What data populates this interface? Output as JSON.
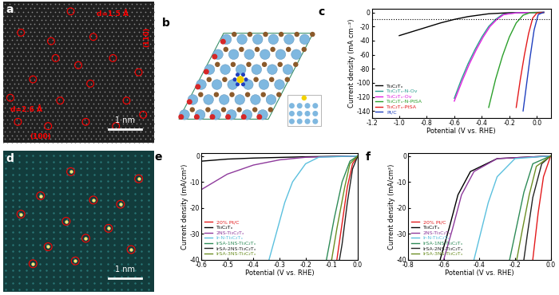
{
  "figure": {
    "a": {
      "label": "a",
      "annotations": [
        "d=1.5 Å",
        "(110)",
        "d=2.6 Å",
        "(100)"
      ],
      "scale_bar": "1 nm"
    },
    "b": {
      "label": "b"
    },
    "d": {
      "label": "d",
      "scale_bar": "1 nm"
    }
  },
  "chart_data": [
    {
      "type": "line",
      "title": "c",
      "xlabel": "Potential (V vs. RHE)",
      "ylabel": "Current density (mA cm⁻²)",
      "xlim": [
        -1.2,
        0.1
      ],
      "xticks": [
        -1.2,
        -1.0,
        -0.8,
        -0.6,
        -0.4,
        -0.2,
        0.0
      ],
      "ylim": [
        -150,
        5
      ],
      "yticks": [
        -140,
        -120,
        -100,
        -80,
        -60,
        -40,
        -20,
        0
      ],
      "reference_line": -10,
      "legend": "lower left",
      "series": [
        {
          "name": "Ti₃C₂Tₓ",
          "color": "#000000",
          "x": [
            0.05,
            -0.2,
            -0.35,
            -0.5,
            -0.6,
            -0.7,
            -0.8,
            -0.9,
            -1.0
          ],
          "values": [
            0,
            -0.5,
            -2,
            -6,
            -10,
            -15,
            -21,
            -27,
            -33
          ]
        },
        {
          "name": "Ti₃C₂Tₓ-N-Ov",
          "color": "#2a9d8f",
          "x": [
            0.05,
            -0.15,
            -0.25,
            -0.3,
            -0.35,
            -0.4,
            -0.45,
            -0.5,
            -0.55,
            -0.6
          ],
          "values": [
            0,
            -0.5,
            -3,
            -10,
            -20,
            -35,
            -53,
            -73,
            -96,
            -122
          ]
        },
        {
          "name": "Ti₃C₂Tₓ-Ov",
          "color": "#e020e0",
          "x": [
            0.05,
            -0.14,
            -0.24,
            -0.29,
            -0.34,
            -0.39,
            -0.44,
            -0.49,
            -0.54,
            -0.6
          ],
          "values": [
            0,
            -0.5,
            -3,
            -10,
            -20,
            -35,
            -53,
            -73,
            -96,
            -126
          ]
        },
        {
          "name": "Ti₃C₂Tₓ-N-PtSA",
          "color": "#2ca02c",
          "x": [
            0.05,
            -0.05,
            -0.1,
            -0.15,
            -0.2,
            -0.25,
            -0.3,
            -0.35
          ],
          "values": [
            0,
            -0.5,
            -4,
            -15,
            -35,
            -62,
            -95,
            -135
          ]
        },
        {
          "name": "Ti₃C₂Tₓ-PtSA",
          "color": "#e31a1c",
          "x": [
            0.05,
            0.0,
            -0.03,
            -0.06,
            -0.09,
            -0.12,
            -0.15
          ],
          "values": [
            0,
            -1,
            -8,
            -30,
            -60,
            -95,
            -135
          ]
        },
        {
          "name": "Pt/C",
          "color": "#1f3fbf",
          "x": [
            0.05,
            0.01,
            -0.02,
            -0.05,
            -0.08,
            -0.1
          ],
          "values": [
            0,
            -3,
            -25,
            -65,
            -110,
            -140
          ]
        }
      ]
    },
    {
      "type": "line",
      "title": "e",
      "xlabel": "Potential (V vs. RHE)",
      "ylabel": "Current density (mA/cm²)",
      "xlim": [
        -0.6,
        0.0
      ],
      "xticks": [
        -0.6,
        -0.5,
        -0.4,
        -0.3,
        -0.2,
        -0.1,
        0.0
      ],
      "ylim": [
        -40,
        1
      ],
      "yticks": [
        -40,
        -30,
        -20,
        -10,
        0
      ],
      "legend": "lower left",
      "series": [
        {
          "name": "20% Pt/C",
          "color": "#e31a1c",
          "x": [
            0,
            -0.02,
            -0.04,
            -0.06,
            -0.08
          ],
          "values": [
            0,
            -3,
            -12,
            -26,
            -40
          ]
        },
        {
          "name": "Ti₃C₂Tₓ",
          "color": "#000000",
          "x": [
            0,
            -0.2,
            -0.4,
            -0.5,
            -0.6
          ],
          "values": [
            0,
            -0.3,
            -0.8,
            -1.2,
            -2
          ]
        },
        {
          "name": "2NS-Ti₃C₂Tₓ",
          "color": "#8e3a9c",
          "x": [
            0,
            -0.2,
            -0.3,
            -0.4,
            -0.5,
            -0.6
          ],
          "values": [
            0,
            -0.5,
            -1.5,
            -3.5,
            -7,
            -13
          ]
        },
        {
          "name": "Ir-N-Ti₃C₂Tₓ",
          "color": "#5bc0de",
          "x": [
            0,
            -0.15,
            -0.2,
            -0.25,
            -0.28,
            -0.31,
            -0.34
          ],
          "values": [
            0,
            -0.5,
            -3,
            -10,
            -18,
            -29,
            -40
          ]
        },
        {
          "name": "IrSA-1NS-Ti₃C₂Tₓ",
          "color": "#2e8b57",
          "x": [
            0,
            -0.03,
            -0.06,
            -0.09,
            -0.12
          ],
          "values": [
            0,
            -2,
            -10,
            -24,
            -40
          ]
        },
        {
          "name": "IrSA-2NS-Ti₃C₂Tₓ",
          "color": "#222222",
          "x": [
            0,
            -0.02,
            -0.04,
            -0.06,
            -0.07
          ],
          "values": [
            0,
            -5,
            -18,
            -34,
            -40
          ]
        },
        {
          "name": "IrSA-3NS-Ti₃C₂Tₓ",
          "color": "#6b8e23",
          "x": [
            0,
            -0.03,
            -0.05,
            -0.08,
            -0.1
          ],
          "values": [
            0,
            -3,
            -12,
            -28,
            -40
          ]
        }
      ]
    },
    {
      "type": "line",
      "title": "f",
      "xlabel": "Potential (V vs. RHE)",
      "ylabel": "Current density (mA/cm²)",
      "xlim": [
        -0.8,
        0.0
      ],
      "xticks": [
        -0.8,
        -0.6,
        -0.4,
        -0.2,
        0.0
      ],
      "ylim": [
        -40,
        1
      ],
      "yticks": [
        -40,
        -30,
        -20,
        -10,
        0
      ],
      "legend": "lower left",
      "series": [
        {
          "name": "20% Pt/C",
          "color": "#e31a1c",
          "x": [
            0,
            -0.04,
            -0.07,
            -0.1
          ],
          "values": [
            0,
            -8,
            -22,
            -40
          ]
        },
        {
          "name": "Ti₃C₂Tₓ",
          "color": "#000000",
          "x": [
            0,
            -0.3,
            -0.45,
            -0.52,
            -0.57,
            -0.62
          ],
          "values": [
            0,
            -1,
            -6,
            -15,
            -28,
            -40
          ]
        },
        {
          "name": "2NS-Ti₃C₂Tₓ",
          "color": "#8e3a9c",
          "x": [
            0,
            -0.3,
            -0.43,
            -0.5,
            -0.55,
            -0.6
          ],
          "values": [
            0,
            -1,
            -6,
            -15,
            -28,
            -40
          ]
        },
        {
          "name": "Ir-N-Ti₃C₂Tₓ",
          "color": "#5bc0de",
          "x": [
            0,
            -0.2,
            -0.3,
            -0.35,
            -0.39,
            -0.43
          ],
          "values": [
            0,
            -1,
            -8,
            -18,
            -29,
            -40
          ]
        },
        {
          "name": "IrSA-1NS-Ti₃C₂Tₓ",
          "color": "#2e8b57",
          "x": [
            0,
            -0.1,
            -0.15,
            -0.19,
            -0.23
          ],
          "values": [
            0,
            -3,
            -14,
            -27,
            -40
          ]
        },
        {
          "name": "IrSA-2NS-Ti₃C₂Tₓ",
          "color": "#222222",
          "x": [
            0,
            -0.05,
            -0.1,
            -0.13,
            -0.15
          ],
          "values": [
            0,
            -3,
            -16,
            -30,
            -40
          ]
        },
        {
          "name": "IrSA-3NS-Ti₃C₂Tₓ",
          "color": "#6b8e23",
          "x": [
            0,
            -0.08,
            -0.12,
            -0.16,
            -0.19
          ],
          "values": [
            0,
            -4,
            -15,
            -29,
            -40
          ]
        }
      ]
    }
  ]
}
